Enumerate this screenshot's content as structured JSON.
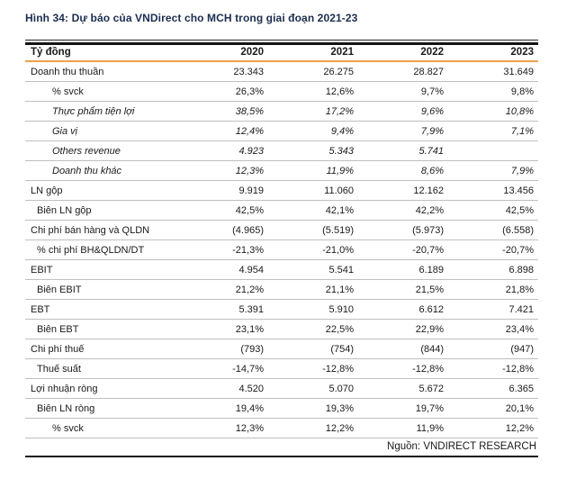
{
  "title": "Hình 34: Dự báo của VNDirect cho MCH trong giai đoạn 2021-23",
  "colors": {
    "title_navy": "#1b2d4f",
    "header_underline_orange": "#eda04c",
    "row_divider_gray": "#bfbfbf",
    "rule_dark": "#141414",
    "text": "#1a1a1a"
  },
  "table": {
    "header_label": "Tỷ đồng",
    "columns": [
      "2020",
      "2021",
      "2022",
      "2023"
    ],
    "rows": [
      {
        "label": "Doanh thu thuần",
        "values": [
          "23.343",
          "26.275",
          "28.827",
          "31.649"
        ],
        "indent": 0,
        "italic": false
      },
      {
        "label": "% svck",
        "values": [
          "26,3%",
          "12,6%",
          "9,7%",
          "9,8%"
        ],
        "indent": 2,
        "italic": false
      },
      {
        "label": "Thực phẩm tiện lợi",
        "values": [
          "38,5%",
          "17,2%",
          "9,6%",
          "10,8%"
        ],
        "indent": 2,
        "italic": true
      },
      {
        "label": "Gia vị",
        "values": [
          "12,4%",
          "9,4%",
          "7,9%",
          "7,1%"
        ],
        "indent": 2,
        "italic": true
      },
      {
        "label": "Others revenue",
        "values": [
          "4.923",
          "5.343",
          "5.741",
          ""
        ],
        "indent": 2,
        "italic": true
      },
      {
        "label": "Doanh thu khác",
        "values": [
          "12,3%",
          "11,9%",
          "8,6%",
          "7,9%"
        ],
        "indent": 2,
        "italic": true
      },
      {
        "label": "LN gộp",
        "values": [
          "9.919",
          "11.060",
          "12.162",
          "13.456"
        ],
        "indent": 0,
        "italic": false
      },
      {
        "label": "Biên LN gộp",
        "values": [
          "42,5%",
          "42,1%",
          "42,2%",
          "42,5%"
        ],
        "indent": 1,
        "italic": false
      },
      {
        "label": "Chi phí bán hàng và QLDN",
        "values": [
          "(4.965)",
          "(5.519)",
          "(5.973)",
          "(6.558)"
        ],
        "indent": 0,
        "italic": false
      },
      {
        "label": "% chi phí BH&QLDN/DT",
        "values": [
          "-21,3%",
          "-21,0%",
          "-20,7%",
          "-20,7%"
        ],
        "indent": 1,
        "italic": false
      },
      {
        "label": "EBIT",
        "values": [
          "4.954",
          "5.541",
          "6.189",
          "6.898"
        ],
        "indent": 0,
        "italic": false
      },
      {
        "label": "Biên EBIT",
        "values": [
          "21,2%",
          "21,1%",
          "21,5%",
          "21,8%"
        ],
        "indent": 1,
        "italic": false
      },
      {
        "label": "EBT",
        "values": [
          "5.391",
          "5.910",
          "6.612",
          "7.421"
        ],
        "indent": 0,
        "italic": false
      },
      {
        "label": "Biên EBT",
        "values": [
          "23,1%",
          "22,5%",
          "22,9%",
          "23,4%"
        ],
        "indent": 1,
        "italic": false
      },
      {
        "label": "Chi phí thuế",
        "values": [
          "(793)",
          "(754)",
          "(844)",
          "(947)"
        ],
        "indent": 0,
        "italic": false
      },
      {
        "label": "Thuế suất",
        "values": [
          "-14,7%",
          "-12,8%",
          "-12,8%",
          "-12,8%"
        ],
        "indent": 1,
        "italic": false
      },
      {
        "label": "Lợi nhuận ròng",
        "values": [
          "4.520",
          "5.070",
          "5.672",
          "6.365"
        ],
        "indent": 0,
        "italic": false
      },
      {
        "label": "Biên LN ròng",
        "values": [
          "19,4%",
          "19,3%",
          "19,7%",
          "20,1%"
        ],
        "indent": 1,
        "italic": false
      },
      {
        "label": "% svck",
        "values": [
          "12,3%",
          "12,2%",
          "11,9%",
          "12,2%"
        ],
        "indent": 2,
        "italic": false
      }
    ]
  },
  "footer": {
    "source_label": "Nguồn: VNDIRECT RESEARCH"
  },
  "chart_data": {
    "type": "table",
    "title": "Hình 34: Dự báo của VNDirect cho MCH trong giai đoạn 2021-23",
    "unit": "Tỷ đồng",
    "categories": [
      "2020",
      "2021",
      "2022",
      "2023"
    ],
    "series": [
      {
        "name": "Doanh thu thuần",
        "values": [
          23343,
          26275,
          28827,
          31649
        ]
      },
      {
        "name": "% svck (doanh thu)",
        "values": [
          26.3,
          12.6,
          9.7,
          9.8
        ],
        "unit": "%"
      },
      {
        "name": "Thực phẩm tiện lợi",
        "values": [
          38.5,
          17.2,
          9.6,
          10.8
        ],
        "unit": "%"
      },
      {
        "name": "Gia vị",
        "values": [
          12.4,
          9.4,
          7.9,
          7.1
        ],
        "unit": "%"
      },
      {
        "name": "Others revenue",
        "values": [
          4923,
          5343,
          5741,
          null
        ]
      },
      {
        "name": "Doanh thu khác",
        "values": [
          12.3,
          11.9,
          8.6,
          7.9
        ],
        "unit": "%"
      },
      {
        "name": "LN gộp",
        "values": [
          9919,
          11060,
          12162,
          13456
        ]
      },
      {
        "name": "Biên LN gộp",
        "values": [
          42.5,
          42.1,
          42.2,
          42.5
        ],
        "unit": "%"
      },
      {
        "name": "Chi phí bán hàng và QLDN",
        "values": [
          -4965,
          -5519,
          -5973,
          -6558
        ]
      },
      {
        "name": "% chi phí BH&QLDN/DT",
        "values": [
          -21.3,
          -21.0,
          -20.7,
          -20.7
        ],
        "unit": "%"
      },
      {
        "name": "EBIT",
        "values": [
          4954,
          5541,
          6189,
          6898
        ]
      },
      {
        "name": "Biên EBIT",
        "values": [
          21.2,
          21.1,
          21.5,
          21.8
        ],
        "unit": "%"
      },
      {
        "name": "EBT",
        "values": [
          5391,
          5910,
          6612,
          7421
        ]
      },
      {
        "name": "Biên EBT",
        "values": [
          23.1,
          22.5,
          22.9,
          23.4
        ],
        "unit": "%"
      },
      {
        "name": "Chi phí thuế",
        "values": [
          -793,
          -754,
          -844,
          -947
        ]
      },
      {
        "name": "Thuế suất",
        "values": [
          -14.7,
          -12.8,
          -12.8,
          -12.8
        ],
        "unit": "%"
      },
      {
        "name": "Lợi nhuận ròng",
        "values": [
          4520,
          5070,
          5672,
          6365
        ]
      },
      {
        "name": "Biên LN ròng",
        "values": [
          19.4,
          19.3,
          19.7,
          20.1
        ],
        "unit": "%"
      },
      {
        "name": "% svck (LN ròng)",
        "values": [
          12.3,
          12.2,
          11.9,
          12.2
        ],
        "unit": "%"
      }
    ],
    "source": "Nguồn: VNDIRECT RESEARCH"
  }
}
